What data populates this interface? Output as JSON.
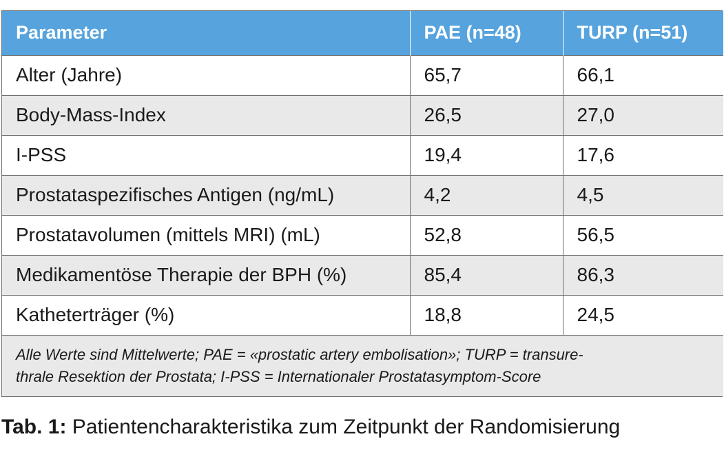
{
  "table": {
    "headers": [
      "Parameter",
      "PAE (n=48)",
      "TURP (n=51)"
    ],
    "rows": [
      [
        "Alter (Jahre)",
        "65,7",
        "66,1"
      ],
      [
        "Body-Mass-Index",
        "26,5",
        "27,0"
      ],
      [
        "I-PSS",
        "19,4",
        "17,6"
      ],
      [
        "Prostataspezifisches Antigen (ng/mL)",
        "4,2",
        "4,5"
      ],
      [
        "Prostatavolumen (mittels MRI) (mL)",
        "52,8",
        "56,5"
      ],
      [
        "Medikamentöse Therapie der BPH (%)",
        "85,4",
        "86,3"
      ],
      [
        "Katheterträger (%)",
        "18,8",
        "24,5"
      ]
    ],
    "footnote_line1": "Alle Werte sind Mittelwerte; PAE = «prostatic artery embolisation»; TURP = transure-",
    "footnote_line2": "thrale Resektion der Prostata; I-PSS = Internationaler Prostatasymptom-Score"
  },
  "caption": {
    "label": "Tab. 1:",
    "text": " Patientencharakteristika zum Zeitpunkt der Randomisierung"
  },
  "colors": {
    "header_bg": "#56a3dd",
    "stripe_bg": "#e9e9e9",
    "border": "#6f6f6f"
  }
}
